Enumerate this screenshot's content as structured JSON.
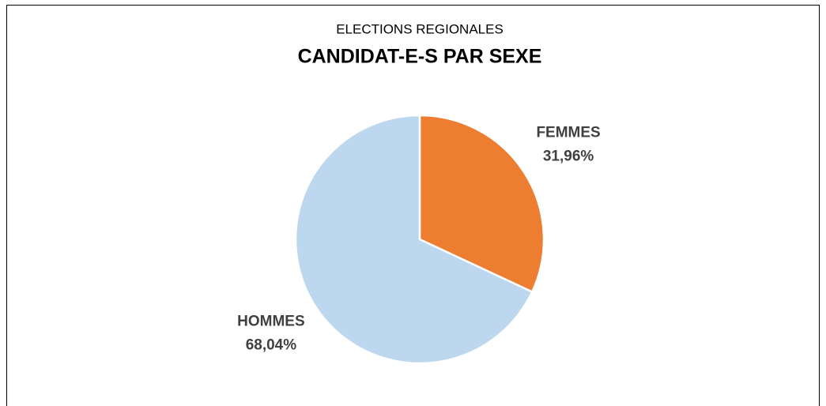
{
  "chart_data": {
    "type": "pie",
    "subtitle": "ELECTIONS REGIONALES",
    "title": "CANDIDAT-E-S PAR SEXE",
    "categories": [
      "FEMMES",
      "HOMMES"
    ],
    "values": [
      31.96,
      68.04
    ],
    "value_labels": [
      "31,96%",
      "68,04%"
    ],
    "colors": [
      "#ed7d31",
      "#bdd7ee"
    ]
  }
}
